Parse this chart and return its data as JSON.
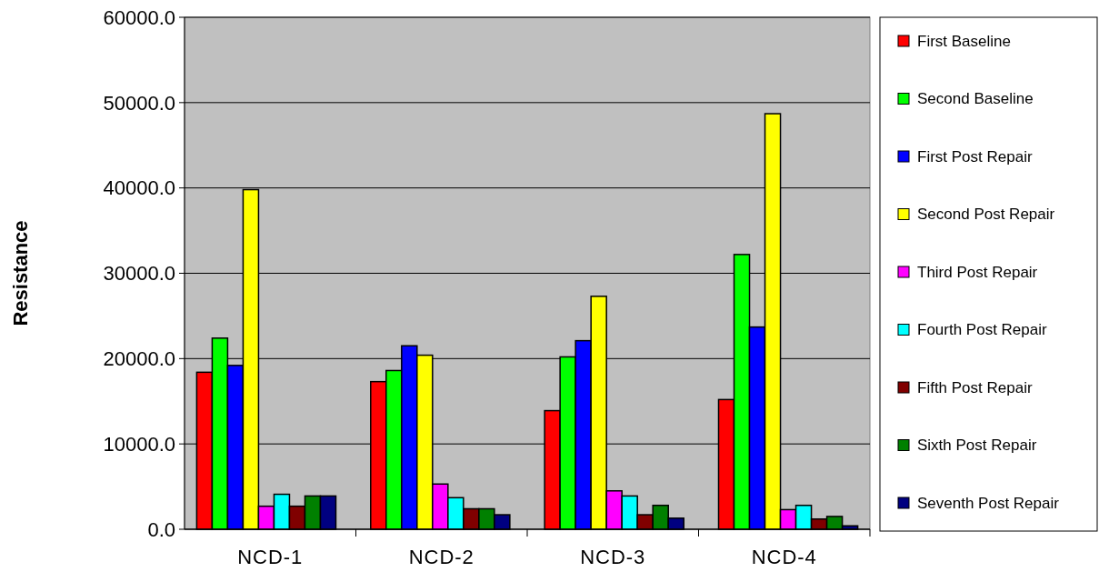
{
  "chart_data": {
    "type": "bar",
    "ylabel": "Resistance",
    "categories": [
      "NCD-1",
      "NCD-2",
      "NCD-3",
      "NCD-4"
    ],
    "series": [
      {
        "name": "First Baseline",
        "color": "#ff0000",
        "values": [
          18400,
          17300,
          13900,
          15200
        ]
      },
      {
        "name": "Second Baseline",
        "color": "#00ff00",
        "values": [
          22400,
          18600,
          20200,
          32200
        ]
      },
      {
        "name": "First Post Repair",
        "color": "#0000ff",
        "values": [
          19200,
          21500,
          22100,
          23700
        ]
      },
      {
        "name": "Second Post Repair",
        "color": "#ffff00",
        "values": [
          39800,
          20400,
          27300,
          48700
        ]
      },
      {
        "name": "Third Post Repair",
        "color": "#ff00ff",
        "values": [
          2700,
          5300,
          4500,
          2300
        ]
      },
      {
        "name": "Fourth Post Repair",
        "color": "#00ffff",
        "values": [
          4100,
          3700,
          3900,
          2800
        ]
      },
      {
        "name": "Fifth Post Repair",
        "color": "#800000",
        "values": [
          2700,
          2400,
          1700,
          1200
        ]
      },
      {
        "name": "Sixth Post Repair",
        "color": "#008000",
        "values": [
          3900,
          2400,
          2800,
          1500
        ]
      },
      {
        "name": "Seventh Post Repair",
        "color": "#000080",
        "values": [
          3900,
          1700,
          1300,
          400
        ]
      }
    ],
    "ylim": [
      0,
      60000
    ],
    "yticks": [
      {
        "value": 0,
        "label": "0.0"
      },
      {
        "value": 10000,
        "label": "10000.0"
      },
      {
        "value": 20000,
        "label": "20000.0"
      },
      {
        "value": 30000,
        "label": "30000.0"
      },
      {
        "value": 40000,
        "label": "40000.0"
      },
      {
        "value": 50000,
        "label": "50000.0"
      },
      {
        "value": 60000,
        "label": "60000.0"
      }
    ],
    "grid": "y",
    "legend": "right"
  }
}
